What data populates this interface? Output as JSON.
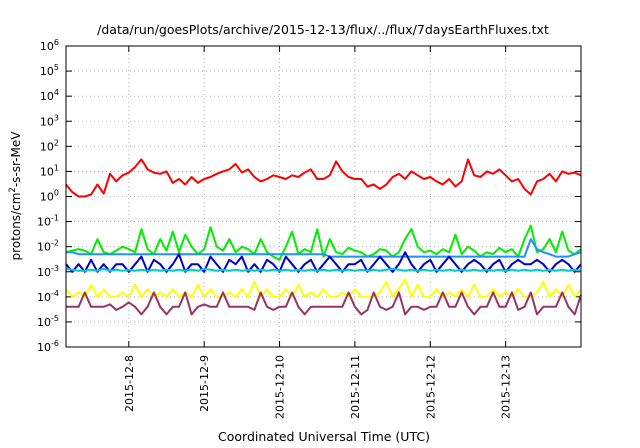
{
  "chart_data": {
    "type": "line",
    "title": "/data/run/goesPlots/archive/2015-12-13/flux/../flux/7daysEarthFluxes.txt",
    "xlabel": "Coordinated Universal Time (UTC)",
    "ylabel": {
      "main": "protons/cm",
      "sup": "2",
      "rest": "-s-sr-MeV"
    },
    "yscale": "log",
    "ylim": [
      1e-06,
      1000000.0
    ],
    "yticks": [
      {
        "base": "10",
        "exp": "-6",
        "value": -6
      },
      {
        "base": "10",
        "exp": "-5",
        "value": -5
      },
      {
        "base": "10",
        "exp": "-4",
        "value": -4
      },
      {
        "base": "10",
        "exp": "-3",
        "value": -3
      },
      {
        "base": "10",
        "exp": "-2",
        "value": -2
      },
      {
        "base": "10",
        "exp": "-1",
        "value": -1
      },
      {
        "base": "10",
        "exp": "0",
        "value": 0
      },
      {
        "base": "10",
        "exp": "1",
        "value": 1
      },
      {
        "base": "10",
        "exp": "2",
        "value": 2
      },
      {
        "base": "10",
        "exp": "3",
        "value": 3
      },
      {
        "base": "10",
        "exp": "4",
        "value": 4
      },
      {
        "base": "10",
        "exp": "5",
        "value": 5
      },
      {
        "base": "10",
        "exp": "6",
        "value": 6
      }
    ],
    "xlim": [
      "2015-12-07T04:00",
      "2015-12-14T00:00"
    ],
    "xticks": [
      {
        "label": "2015-12-8",
        "value": "2015-12-08T00:00"
      },
      {
        "label": "2015-12-9",
        "value": "2015-12-09T00:00"
      },
      {
        "label": "2015-12-10",
        "value": "2015-12-10T00:00"
      },
      {
        "label": "2015-12-11",
        "value": "2015-12-11T00:00"
      },
      {
        "label": "2015-12-12",
        "value": "2015-12-12T00:00"
      },
      {
        "label": "2015-12-13",
        "value": "2015-12-13T00:00"
      }
    ],
    "grid": true,
    "legend": "none",
    "x": [
      "2015-12-07T04:00",
      "2015-12-07T06:00",
      "2015-12-07T08:00",
      "2015-12-07T10:00",
      "2015-12-07T12:00",
      "2015-12-07T14:00",
      "2015-12-07T16:00",
      "2015-12-07T18:00",
      "2015-12-07T20:00",
      "2015-12-07T22:00",
      "2015-12-08T00:00",
      "2015-12-08T02:00",
      "2015-12-08T04:00",
      "2015-12-08T06:00",
      "2015-12-08T08:00",
      "2015-12-08T10:00",
      "2015-12-08T12:00",
      "2015-12-08T14:00",
      "2015-12-08T16:00",
      "2015-12-08T18:00",
      "2015-12-08T20:00",
      "2015-12-08T22:00",
      "2015-12-09T00:00",
      "2015-12-09T02:00",
      "2015-12-09T04:00",
      "2015-12-09T06:00",
      "2015-12-09T08:00",
      "2015-12-09T10:00",
      "2015-12-09T12:00",
      "2015-12-09T14:00",
      "2015-12-09T16:00",
      "2015-12-09T18:00",
      "2015-12-09T20:00",
      "2015-12-09T22:00",
      "2015-12-10T00:00",
      "2015-12-10T02:00",
      "2015-12-10T04:00",
      "2015-12-10T06:00",
      "2015-12-10T08:00",
      "2015-12-10T10:00",
      "2015-12-10T12:00",
      "2015-12-10T14:00",
      "2015-12-10T16:00",
      "2015-12-10T18:00",
      "2015-12-10T20:00",
      "2015-12-10T22:00",
      "2015-12-11T00:00",
      "2015-12-11T02:00",
      "2015-12-11T04:00",
      "2015-12-11T06:00",
      "2015-12-11T08:00",
      "2015-12-11T10:00",
      "2015-12-11T12:00",
      "2015-12-11T14:00",
      "2015-12-11T16:00",
      "2015-12-11T18:00",
      "2015-12-11T20:00",
      "2015-12-11T22:00",
      "2015-12-12T00:00",
      "2015-12-12T02:00",
      "2015-12-12T04:00",
      "2015-12-12T06:00",
      "2015-12-12T08:00",
      "2015-12-12T10:00",
      "2015-12-12T12:00",
      "2015-12-12T14:00",
      "2015-12-12T16:00",
      "2015-12-12T18:00",
      "2015-12-12T20:00",
      "2015-12-12T22:00",
      "2015-12-13T00:00",
      "2015-12-13T02:00",
      "2015-12-13T04:00",
      "2015-12-13T06:00",
      "2015-12-13T08:00",
      "2015-12-13T10:00",
      "2015-12-13T12:00",
      "2015-12-13T14:00",
      "2015-12-13T16:00",
      "2015-12-13T18:00",
      "2015-12-13T20:00",
      "2015-12-13T22:00",
      "2015-12-14T00:00"
    ],
    "series": [
      {
        "color": "#ff0000",
        "values": [
          3,
          1.5,
          1,
          1,
          1.2,
          3,
          1.3,
          8,
          4,
          7,
          9,
          15,
          30,
          12,
          9,
          8,
          10,
          3.5,
          5,
          3,
          6,
          3.5,
          5,
          6,
          8,
          10,
          12,
          20,
          9,
          12,
          6,
          4,
          5,
          7,
          6,
          5,
          7,
          6,
          9,
          12,
          5,
          5,
          7,
          25,
          10,
          6,
          5,
          5,
          2.5,
          3,
          2,
          3,
          6,
          8,
          5,
          10,
          7,
          5,
          6,
          4,
          3,
          5,
          2.5,
          4,
          30,
          7,
          6,
          10,
          8,
          12,
          7,
          4,
          5,
          2,
          1.2,
          4,
          5,
          8,
          4,
          10,
          8,
          9,
          7
        ]
      },
      {
        "color": "#00ee00",
        "values": [
          0.006,
          0.007,
          0.008,
          0.007,
          0.005,
          0.02,
          0.006,
          0.005,
          0.007,
          0.01,
          0.008,
          0.006,
          0.05,
          0.008,
          0.005,
          0.02,
          0.007,
          0.04,
          0.006,
          0.03,
          0.01,
          0.005,
          0.008,
          0.06,
          0.01,
          0.007,
          0.02,
          0.006,
          0.01,
          0.008,
          0.005,
          0.02,
          0.006,
          0.004,
          0.003,
          0.01,
          0.04,
          0.005,
          0.008,
          0.006,
          0.05,
          0.004,
          0.02,
          0.006,
          0.005,
          0.009,
          0.007,
          0.006,
          0.004,
          0.005,
          0.008,
          0.007,
          0.004,
          0.006,
          0.02,
          0.05,
          0.01,
          0.006,
          0.007,
          0.005,
          0.008,
          0.006,
          0.03,
          0.005,
          0.01,
          0.007,
          0.004,
          0.006,
          0.005,
          0.009,
          0.006,
          0.008,
          0.004,
          0.02,
          0.07,
          0.006,
          0.008,
          0.02,
          0.006,
          0.04,
          0.007,
          0.005,
          0.008
        ]
      },
      {
        "color": "#1e90ff",
        "values": [
          0.006,
          0.006,
          0.005,
          0.005,
          0.005,
          0.005,
          0.005,
          0.005,
          0.005,
          0.005,
          0.005,
          0.005,
          0.005,
          0.005,
          0.005,
          0.005,
          0.005,
          0.005,
          0.005,
          0.005,
          0.005,
          0.005,
          0.005,
          0.005,
          0.005,
          0.005,
          0.005,
          0.005,
          0.005,
          0.005,
          0.005,
          0.005,
          0.005,
          0.005,
          0.005,
          0.005,
          0.005,
          0.005,
          0.005,
          0.005,
          0.005,
          0.005,
          0.004,
          0.004,
          0.004,
          0.004,
          0.004,
          0.004,
          0.004,
          0.004,
          0.004,
          0.004,
          0.004,
          0.004,
          0.004,
          0.004,
          0.004,
          0.004,
          0.004,
          0.004,
          0.004,
          0.004,
          0.004,
          0.004,
          0.004,
          0.004,
          0.004,
          0.004,
          0.004,
          0.004,
          0.004,
          0.004,
          0.004,
          0.004,
          0.02,
          0.008,
          0.006,
          0.005,
          0.004,
          0.004,
          0.004,
          0.005,
          0.006
        ]
      },
      {
        "color": "#0000cc",
        "values": [
          0.002,
          0.001,
          0.002,
          0.001,
          0.003,
          0.001,
          0.002,
          0.001,
          0.002,
          0.002,
          0.001,
          0.002,
          0.004,
          0.001,
          0.003,
          0.002,
          0.001,
          0.002,
          0.005,
          0.001,
          0.002,
          0.002,
          0.001,
          0.004,
          0.002,
          0.001,
          0.003,
          0.002,
          0.004,
          0.001,
          0.002,
          0.001,
          0.003,
          0.002,
          0.001,
          0.004,
          0.002,
          0.001,
          0.002,
          0.003,
          0.001,
          0.002,
          0.004,
          0.002,
          0.001,
          0.002,
          0.002,
          0.003,
          0.001,
          0.002,
          0.004,
          0.002,
          0.001,
          0.002,
          0.006,
          0.002,
          0.001,
          0.002,
          0.003,
          0.001,
          0.002,
          0.004,
          0.002,
          0.001,
          0.002,
          0.003,
          0.002,
          0.001,
          0.002,
          0.003,
          0.001,
          0.002,
          0.003,
          0.002,
          0.002,
          0.003,
          0.002,
          0.001,
          0.002,
          0.003,
          0.002,
          0.001,
          0.002
        ]
      },
      {
        "color": "#00cccc",
        "values": [
          0.0013,
          0.0012,
          0.0011,
          0.0011,
          0.0012,
          0.0011,
          0.0013,
          0.0011,
          0.0012,
          0.0011,
          0.0012,
          0.0011,
          0.0012,
          0.0011,
          0.0012,
          0.0011,
          0.0012,
          0.0011,
          0.0012,
          0.0011,
          0.0012,
          0.0011,
          0.0013,
          0.0012,
          0.0011,
          0.0012,
          0.0011,
          0.0012,
          0.0011,
          0.0012,
          0.0011,
          0.0012,
          0.0011,
          0.0012,
          0.0011,
          0.0012,
          0.0011,
          0.0012,
          0.0011,
          0.0012,
          0.0011,
          0.0012,
          0.0011,
          0.0012,
          0.0011,
          0.0012,
          0.0011,
          0.0012,
          0.0011,
          0.0012,
          0.0011,
          0.0012,
          0.0013,
          0.0012,
          0.0011,
          0.0012,
          0.0011,
          0.0012,
          0.0011,
          0.0012,
          0.0011,
          0.0012,
          0.0011,
          0.0012,
          0.0011,
          0.0012,
          0.0011,
          0.0012,
          0.0011,
          0.0012,
          0.0011,
          0.0012,
          0.0011,
          0.0012,
          0.0011,
          0.0012,
          0.0011,
          0.0012,
          0.0011,
          0.0012,
          0.0011,
          0.0012,
          0.0011
        ]
      },
      {
        "color": "#ffff00",
        "values": [
          0.0002,
          0.0001,
          0.00015,
          0.0001,
          0.0003,
          0.0001,
          0.0002,
          0.0001,
          0.0001,
          0.00015,
          0.0001,
          0.0003,
          0.0001,
          0.0002,
          0.0001,
          0.00015,
          0.0001,
          0.0002,
          0.0001,
          0.00015,
          0.0001,
          0.0003,
          0.0001,
          0.0002,
          0.0001,
          0.0001,
          0.00015,
          0.0001,
          0.0002,
          0.0001,
          0.0004,
          0.0001,
          0.0002,
          0.0001,
          0.0001,
          0.0002,
          0.0001,
          0.0003,
          0.0001,
          0.00015,
          0.0001,
          0.0002,
          0.0001,
          0.0001,
          0.00015,
          0.0001,
          0.0002,
          0.0001,
          0.0001,
          0.0001,
          0.00015,
          0.0004,
          0.0001,
          0.0002,
          0.0005,
          0.0001,
          0.0003,
          0.0001,
          0.0001,
          0.0002,
          0.0001,
          0.00015,
          0.0001,
          0.0002,
          0.0001,
          0.0003,
          0.0001,
          0.0001,
          0.0002,
          0.0001,
          0.00015,
          0.0001,
          0.0002,
          0.0001,
          0.0001,
          0.00015,
          0.0004,
          0.0001,
          0.0002,
          0.0001,
          0.0003,
          0.0001,
          0.0002
        ]
      },
      {
        "color": "#993366",
        "values": [
          4e-05,
          4e-05,
          4e-05,
          0.00015,
          4e-05,
          4e-05,
          4e-05,
          5e-05,
          3e-05,
          4e-05,
          6e-05,
          4e-05,
          2e-05,
          4e-05,
          0.00015,
          4e-05,
          2e-05,
          4e-05,
          4e-05,
          0.00015,
          2e-05,
          4e-05,
          5e-05,
          4e-05,
          4e-05,
          0.00015,
          4e-05,
          4e-05,
          4e-05,
          4e-05,
          3e-05,
          0.00015,
          4e-05,
          3e-05,
          4e-05,
          4e-05,
          0.00015,
          4e-05,
          2e-05,
          4e-05,
          4e-05,
          4e-05,
          4e-05,
          4e-05,
          4e-05,
          0.00015,
          4e-05,
          2e-05,
          3e-05,
          0.00015,
          4e-05,
          3e-05,
          4e-05,
          0.00015,
          2e-05,
          4e-05,
          4e-05,
          3e-05,
          4e-05,
          4e-05,
          0.00015,
          4e-05,
          4e-05,
          0.00015,
          4e-05,
          2e-05,
          4e-05,
          4e-05,
          0.00015,
          4e-05,
          4e-05,
          0.00015,
          3e-05,
          4e-05,
          0.00015,
          2e-05,
          4e-05,
          4e-05,
          4e-05,
          0.00015,
          4e-05,
          2e-05,
          0.00012
        ]
      }
    ]
  }
}
